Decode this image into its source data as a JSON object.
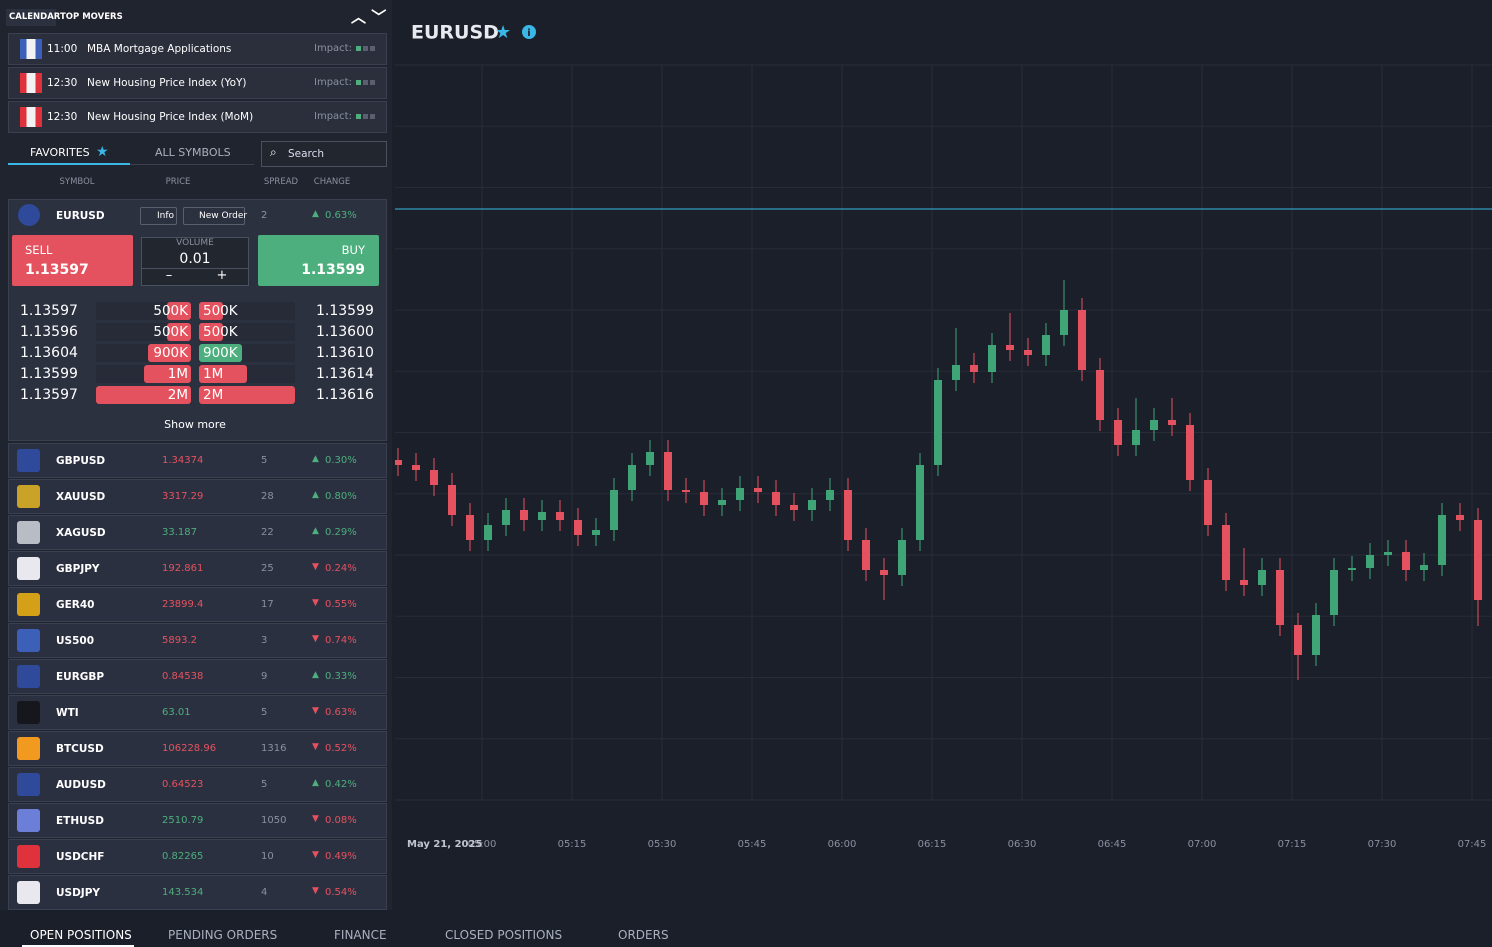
{
  "calendar": {
    "tabs": [
      "CALENDAR",
      "TOP MOVERS"
    ],
    "events": [
      {
        "time": "11:00",
        "title": "MBA Mortgage Applications",
        "impact": "Impact:",
        "icon_color": "#3c5fb8"
      },
      {
        "time": "12:30",
        "title": "New Housing Price Index (YoY)",
        "impact": "Impact:",
        "icon_color": "#e0323c"
      },
      {
        "time": "12:30",
        "title": "New Housing Price Index (MoM)",
        "impact": "Impact:",
        "icon_color": "#e0323c"
      }
    ]
  },
  "favorites": {
    "tabs": [
      "FAVORITES",
      "ALL SYMBOLS"
    ],
    "search": "Search",
    "columns": [
      "SYMBOL",
      "PRICE",
      "SPREAD",
      "CHANGE"
    ],
    "selected": {
      "symbol": "EURUSD",
      "info": "Info",
      "new_order": "New Order",
      "spread": "2",
      "change": "0.63%",
      "direction": "up",
      "sell_label": "SELL",
      "sell": "1.13597",
      "volume_label": "VOLUME",
      "volume": "0.01",
      "minus": "–",
      "plus": "+",
      "buy_label": "BUY",
      "buy": "1.13599",
      "bid_color": "#e5525f",
      "depth": [
        {
          "bid": "1.13597",
          "bid_size": {
            "value": 500000,
            "label": "500K"
          },
          "ask_size": {
            "value": 500000,
            "label": "500K"
          },
          "ask": "1.13599",
          "ask_color": "#e5525f"
        },
        {
          "bid": "1.13596",
          "bid_size": {
            "value": 500000,
            "label": "500K"
          },
          "ask_size": {
            "value": 500000,
            "label": "500K"
          },
          "ask": "1.13600",
          "ask_color": "#e5525f"
        },
        {
          "bid": "1.13604",
          "bid_size": {
            "value": 900000,
            "label": "900K"
          },
          "ask_size": {
            "value": 900000,
            "label": "900K"
          },
          "ask": "1.13610",
          "ask_color": "#4caf7d"
        },
        {
          "bid": "1.13599",
          "bid_size": {
            "value": 1000000,
            "label": "1M"
          },
          "ask_size": {
            "value": 1000000,
            "label": "1M"
          },
          "ask": "1.13614",
          "ask_color": "#e5525f"
        },
        {
          "bid": "1.13597",
          "bid_size": {
            "value": 2000000,
            "label": "2M"
          },
          "ask_size": {
            "value": 2000000,
            "label": "2M"
          },
          "ask": "1.13616",
          "ask_color": "#e5525f"
        }
      ]
    },
    "show_more": "Show more",
    "rows": [
      {
        "symbol": "GBPUSD",
        "price": "1.34374",
        "price_direction": "down",
        "spread": "5",
        "change": "0.30%",
        "direction": "up",
        "icon_color": "#2f4a9a"
      },
      {
        "symbol": "XAUUSD",
        "price": "3317.29",
        "price_direction": "down",
        "spread": "28",
        "change": "0.80%",
        "direction": "up",
        "icon_color": "#c9a227"
      },
      {
        "symbol": "XAGUSD",
        "price": "33.187",
        "price_direction": "up",
        "spread": "22",
        "change": "0.29%",
        "direction": "up",
        "icon_color": "#b8bcc4"
      },
      {
        "symbol": "GBPJPY",
        "price": "192.861",
        "price_direction": "down",
        "spread": "25",
        "change": "0.24%",
        "direction": "down",
        "icon_color": "#e8e8ee"
      },
      {
        "symbol": "GER40",
        "price": "23899.4",
        "price_direction": "down",
        "spread": "17",
        "change": "0.55%",
        "direction": "down",
        "icon_color": "#d4a017"
      },
      {
        "symbol": "US500",
        "price": "5893.2",
        "price_direction": "down",
        "spread": "3",
        "change": "0.74%",
        "direction": "down",
        "icon_color": "#3c5fb8"
      },
      {
        "symbol": "EURGBP",
        "price": "0.84538",
        "price_direction": "down",
        "spread": "9",
        "change": "0.33%",
        "direction": "up",
        "icon_color": "#2f4a9a"
      },
      {
        "symbol": "WTI",
        "price": "63.01",
        "price_direction": "up",
        "spread": "5",
        "change": "0.63%",
        "direction": "down",
        "icon_color": "#15171c"
      },
      {
        "symbol": "BTCUSD",
        "price": "106228.96",
        "price_direction": "down",
        "spread": "1316",
        "change": "0.52%",
        "direction": "down",
        "icon_color": "#f29a1f"
      },
      {
        "symbol": "AUDUSD",
        "price": "0.64523",
        "price_direction": "down",
        "spread": "5",
        "change": "0.42%",
        "direction": "up",
        "icon_color": "#2f4a9a"
      },
      {
        "symbol": "ETHUSD",
        "price": "2510.79",
        "price_direction": "up",
        "spread": "1050",
        "change": "0.08%",
        "direction": "down",
        "icon_color": "#6c7fd8"
      },
      {
        "symbol": "USDCHF",
        "price": "0.82265",
        "price_direction": "up",
        "spread": "10",
        "change": "0.49%",
        "direction": "down",
        "icon_color": "#e0323c"
      },
      {
        "symbol": "USDJPY",
        "price": "143.534",
        "price_direction": "up",
        "spread": "4",
        "change": "0.54%",
        "direction": "down",
        "icon_color": "#e8e8ee"
      }
    ]
  },
  "bottom_tabs": [
    "OPEN POSITIONS",
    "PENDING ORDERS",
    "FINANCE",
    "CLOSED POSITIONS",
    "ORDERS"
  ],
  "chart_data": {
    "type": "candlestick",
    "title": "EURUSD",
    "date_label": "May 21, 2025",
    "x": [
      "04:46",
      "04:49",
      "04:52",
      "04:55",
      "04:58",
      "05:01",
      "05:04",
      "05:07",
      "05:10",
      "05:13",
      "05:16",
      "05:19",
      "05:22",
      "05:25",
      "05:28",
      "05:31",
      "05:34",
      "05:37",
      "05:40",
      "05:43",
      "05:46",
      "05:49",
      "05:52",
      "05:55",
      "05:58",
      "06:01",
      "06:04",
      "06:07",
      "06:10",
      "06:13",
      "06:16",
      "06:19",
      "06:22",
      "06:25",
      "06:28",
      "06:31",
      "06:34",
      "06:37",
      "06:40",
      "06:43",
      "06:46",
      "06:49",
      "06:52",
      "06:55",
      "06:58",
      "07:01",
      "07:04",
      "07:07",
      "07:10",
      "07:13",
      "07:16",
      "07:19",
      "07:22",
      "07:25",
      "07:28",
      "07:31",
      "07:34",
      "07:37",
      "07:40",
      "07:43",
      "07:46"
    ],
    "open": [
      1.13346,
      1.13341,
      1.13336,
      1.13321,
      1.13291,
      1.13266,
      1.13281,
      1.13296,
      1.13286,
      1.13294,
      1.13286,
      1.13271,
      1.13276,
      1.13316,
      1.13341,
      1.13354,
      1.13316,
      1.13314,
      1.13301,
      1.13306,
      1.13318,
      1.13314,
      1.13301,
      1.13296,
      1.13306,
      1.13316,
      1.13266,
      1.13236,
      1.13231,
      1.13266,
      1.13341,
      1.13426,
      1.13441,
      1.13434,
      1.13461,
      1.13456,
      1.13451,
      1.13471,
      1.13496,
      1.13436,
      1.13386,
      1.13361,
      1.13376,
      1.13386,
      1.13381,
      1.13326,
      1.13281,
      1.13226,
      1.13221,
      1.13236,
      1.13181,
      1.13151,
      1.13191,
      1.13236,
      1.13238,
      1.13251,
      1.13254,
      1.13236,
      1.13241,
      1.13291,
      1.13286
    ],
    "high": [
      1.13358,
      1.13353,
      1.13348,
      1.13333,
      1.13303,
      1.13293,
      1.13308,
      1.13308,
      1.13306,
      1.13306,
      1.13298,
      1.13288,
      1.13328,
      1.13353,
      1.13366,
      1.13366,
      1.13328,
      1.13326,
      1.13318,
      1.1333,
      1.1333,
      1.13326,
      1.13313,
      1.13318,
      1.13328,
      1.13328,
      1.13278,
      1.13248,
      1.13278,
      1.13353,
      1.13438,
      1.13478,
      1.13453,
      1.13473,
      1.13493,
      1.13468,
      1.13483,
      1.13526,
      1.13508,
      1.13448,
      1.13398,
      1.13408,
      1.13398,
      1.13408,
      1.13393,
      1.13338,
      1.13293,
      1.13258,
      1.13248,
      1.13248,
      1.13193,
      1.13203,
      1.13248,
      1.1325,
      1.13263,
      1.13266,
      1.13266,
      1.13253,
      1.13303,
      1.13303,
      1.13298
    ],
    "low": [
      1.1333,
      1.13325,
      1.1331,
      1.1328,
      1.13255,
      1.13255,
      1.1327,
      1.13275,
      1.13275,
      1.13275,
      1.1326,
      1.1326,
      1.13265,
      1.13305,
      1.1333,
      1.13305,
      1.13303,
      1.1329,
      1.1329,
      1.13295,
      1.13303,
      1.1329,
      1.13285,
      1.13285,
      1.13295,
      1.13255,
      1.13225,
      1.13206,
      1.1322,
      1.13255,
      1.1333,
      1.13415,
      1.13423,
      1.13423,
      1.13445,
      1.1344,
      1.1344,
      1.1346,
      1.13425,
      1.13375,
      1.1335,
      1.1335,
      1.13365,
      1.1337,
      1.13315,
      1.1327,
      1.13215,
      1.1321,
      1.1321,
      1.1317,
      1.13126,
      1.1314,
      1.1318,
      1.13225,
      1.13227,
      1.1324,
      1.13225,
      1.13225,
      1.1323,
      1.13275,
      1.1318
    ],
    "close": [
      1.13341,
      1.13336,
      1.13321,
      1.13291,
      1.13266,
      1.13281,
      1.13296,
      1.13286,
      1.13294,
      1.13286,
      1.13271,
      1.13276,
      1.13316,
      1.13341,
      1.13354,
      1.13316,
      1.13314,
      1.13301,
      1.13306,
      1.13318,
      1.13314,
      1.13301,
      1.13296,
      1.13306,
      1.13316,
      1.13266,
      1.13236,
      1.13231,
      1.13266,
      1.13341,
      1.13426,
      1.13441,
      1.13434,
      1.13461,
      1.13456,
      1.13451,
      1.13471,
      1.13496,
      1.13436,
      1.13386,
      1.13361,
      1.13376,
      1.13386,
      1.13381,
      1.13326,
      1.13281,
      1.13226,
      1.13221,
      1.13236,
      1.13181,
      1.13151,
      1.13191,
      1.13236,
      1.13238,
      1.13251,
      1.13254,
      1.13236,
      1.13241,
      1.13291,
      1.13286,
      1.13206
    ],
    "xlim": [
      "04:46",
      "07:48"
    ],
    "ylim": [
      1.13006,
      1.13741
    ],
    "xticks": [
      "05:00",
      "05:15",
      "05:30",
      "05:45",
      "06:00",
      "06:15",
      "06:30",
      "06:45",
      "07:00",
      "07:15",
      "07:30",
      "07:45"
    ],
    "grid": true,
    "colors": {
      "up": "#3fa577",
      "down": "#e5525f",
      "price_line": "#3ab7e6"
    }
  }
}
